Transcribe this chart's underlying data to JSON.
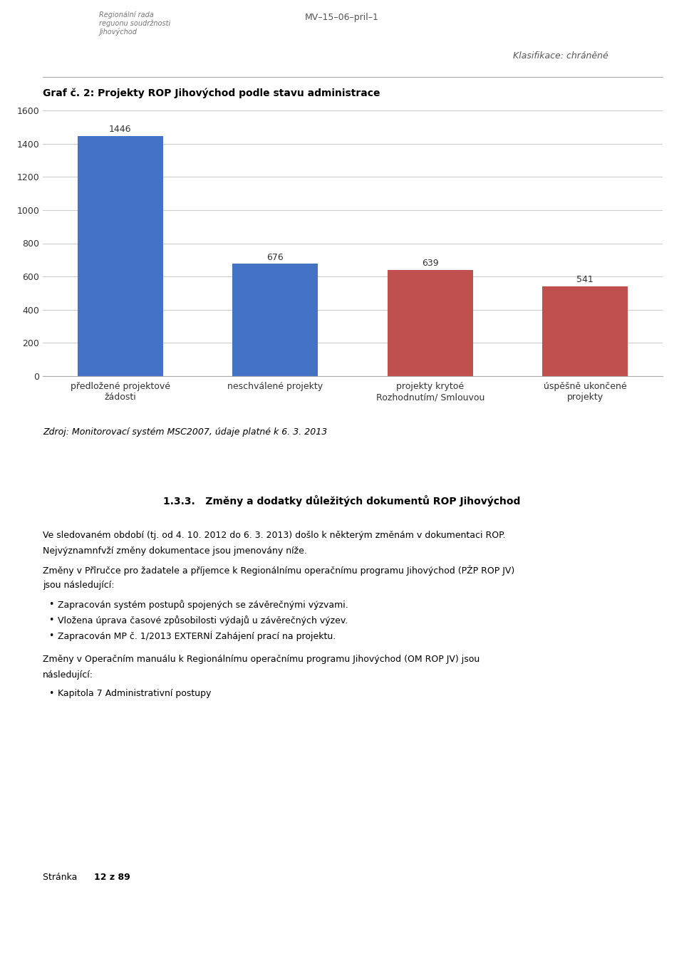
{
  "page_width": 9.6,
  "page_height": 13.49,
  "background_color": "#ffffff",
  "header_center_text": "MV–15–06–pril–1",
  "header_right_text": "Klasifikace: chráněné",
  "chart_title": "Graf č. 2: Projekty ROP Jihovýchod podle stavu administrace",
  "categories": [
    "předložené projektové\nžádosti",
    "neschválené projekty",
    "projekty krytoé\nRozhodnutím/ Smlouvou",
    "úspěšně ukončené\nprojekty"
  ],
  "values": [
    1446,
    676,
    639,
    541
  ],
  "bar_colors": [
    "#4472c4",
    "#4472c4",
    "#c0504d",
    "#c0504d"
  ],
  "ylim": [
    0,
    1600
  ],
  "yticks": [
    0,
    200,
    400,
    600,
    800,
    1000,
    1200,
    1400,
    1600
  ],
  "source_text": "Zdroj: Monitorovací systém MSC2007, údaje platné k 6. 3. 2013",
  "section_title": "1.3.3.   Změny a dodatky důležitých dokumentů ROP Jihovýchod",
  "para1_line1": "Ve sledovaném období (tj. od 4. 10. 2012 do 6. 3. 2013) došlo k některým změnám v dokumentaci ROP.",
  "para1_line2": "Nejvýznamnfvží změny dokumentace jsou jmenovány níže.",
  "para2_line1": "Změny v Přîručce pro žadatele a příjemce k Regionálnímu operačnímu programu Jihovýchod (PŽP ROP JV)",
  "para2_line2": "jsou následující:",
  "bullets1": [
    "Zapracován systém postupů spojených se závěrečnými výzvami.",
    "Vložena úprava časové způsobilosti výdajů u závěrečných výzev.",
    "Zapracován MP č. 1/2013 EXTERNÍ Zahájení prací na projektu."
  ],
  "para3_line1": "Změny v Operačním manuálu k Regionálnímu operačnímu programu Jihovýchod (OM ROP JV) jsou",
  "para3_line2": "následující:",
  "bullets2": [
    "Kapitola 7 Administrativní postupy"
  ],
  "footer_page_text": "Stránka ",
  "footer_bold": "12 z 89",
  "chart_label_fontsize": 9,
  "chart_tick_fontsize": 9,
  "chart_title_fontsize": 10,
  "body_fontsize": 9,
  "source_fontsize": 9,
  "header_fontsize": 9
}
